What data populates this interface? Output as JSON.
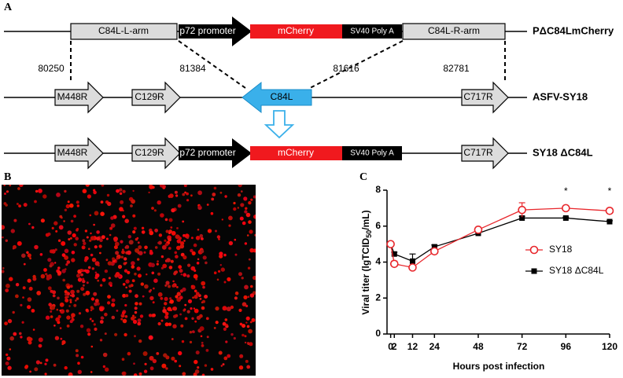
{
  "panels": {
    "a": "A",
    "b": "B",
    "c": "C"
  },
  "diagram": {
    "construct": {
      "name": "PΔC84LmCherry",
      "left_arm": "C84L-L-arm",
      "promoter": "p72 promoter",
      "reporter": "mCherry",
      "polya": "SV40 Poly A",
      "right_arm": "C84L-R-arm"
    },
    "positions": [
      "80250",
      "81384",
      "81616",
      "82781"
    ],
    "parent": {
      "name": "ASFV-SY18",
      "genes": [
        "M448R",
        "C129R",
        "C84L",
        "C717R"
      ]
    },
    "mutant": {
      "name": "SY18 ΔC84L",
      "genes": [
        "M448R",
        "C129R",
        "p72 promoter",
        "mCherry",
        "SV40 Poly A",
        "C717R"
      ]
    }
  },
  "chart_data": {
    "type": "line",
    "xlabel": "Hours post infection",
    "ylabel": [
      "Viral titer (lgTCID",
      "50",
      "/mL)"
    ],
    "x": [
      0,
      2,
      12,
      24,
      48,
      72,
      96,
      120
    ],
    "xlim": [
      -2,
      120
    ],
    "xticks": [
      0,
      2,
      12,
      24,
      48,
      72,
      96,
      120
    ],
    "ylim": [
      0,
      8
    ],
    "yticks": [
      0,
      2,
      4,
      6,
      8
    ],
    "legend": "lower right",
    "series": [
      {
        "name": "SY18",
        "color": "#e8262b",
        "marker": "open-circle",
        "values": [
          5.0,
          3.9,
          3.7,
          4.6,
          5.8,
          6.9,
          7.0,
          6.85
        ],
        "errors": [
          0.1,
          0.15,
          0.1,
          0.1,
          0.05,
          0.4,
          0.05,
          0.05
        ]
      },
      {
        "name": "SY18 ΔC84L",
        "color": "#000000",
        "marker": "square",
        "values": [
          5.0,
          4.45,
          4.05,
          4.85,
          5.6,
          6.45,
          6.45,
          6.25
        ],
        "errors": [
          0.1,
          0.1,
          0.4,
          0.1,
          0.05,
          0.1,
          0.05,
          0.05
        ]
      }
    ],
    "annotations": [
      {
        "text": "*",
        "x": 96
      },
      {
        "text": "*",
        "x": 120
      }
    ]
  }
}
